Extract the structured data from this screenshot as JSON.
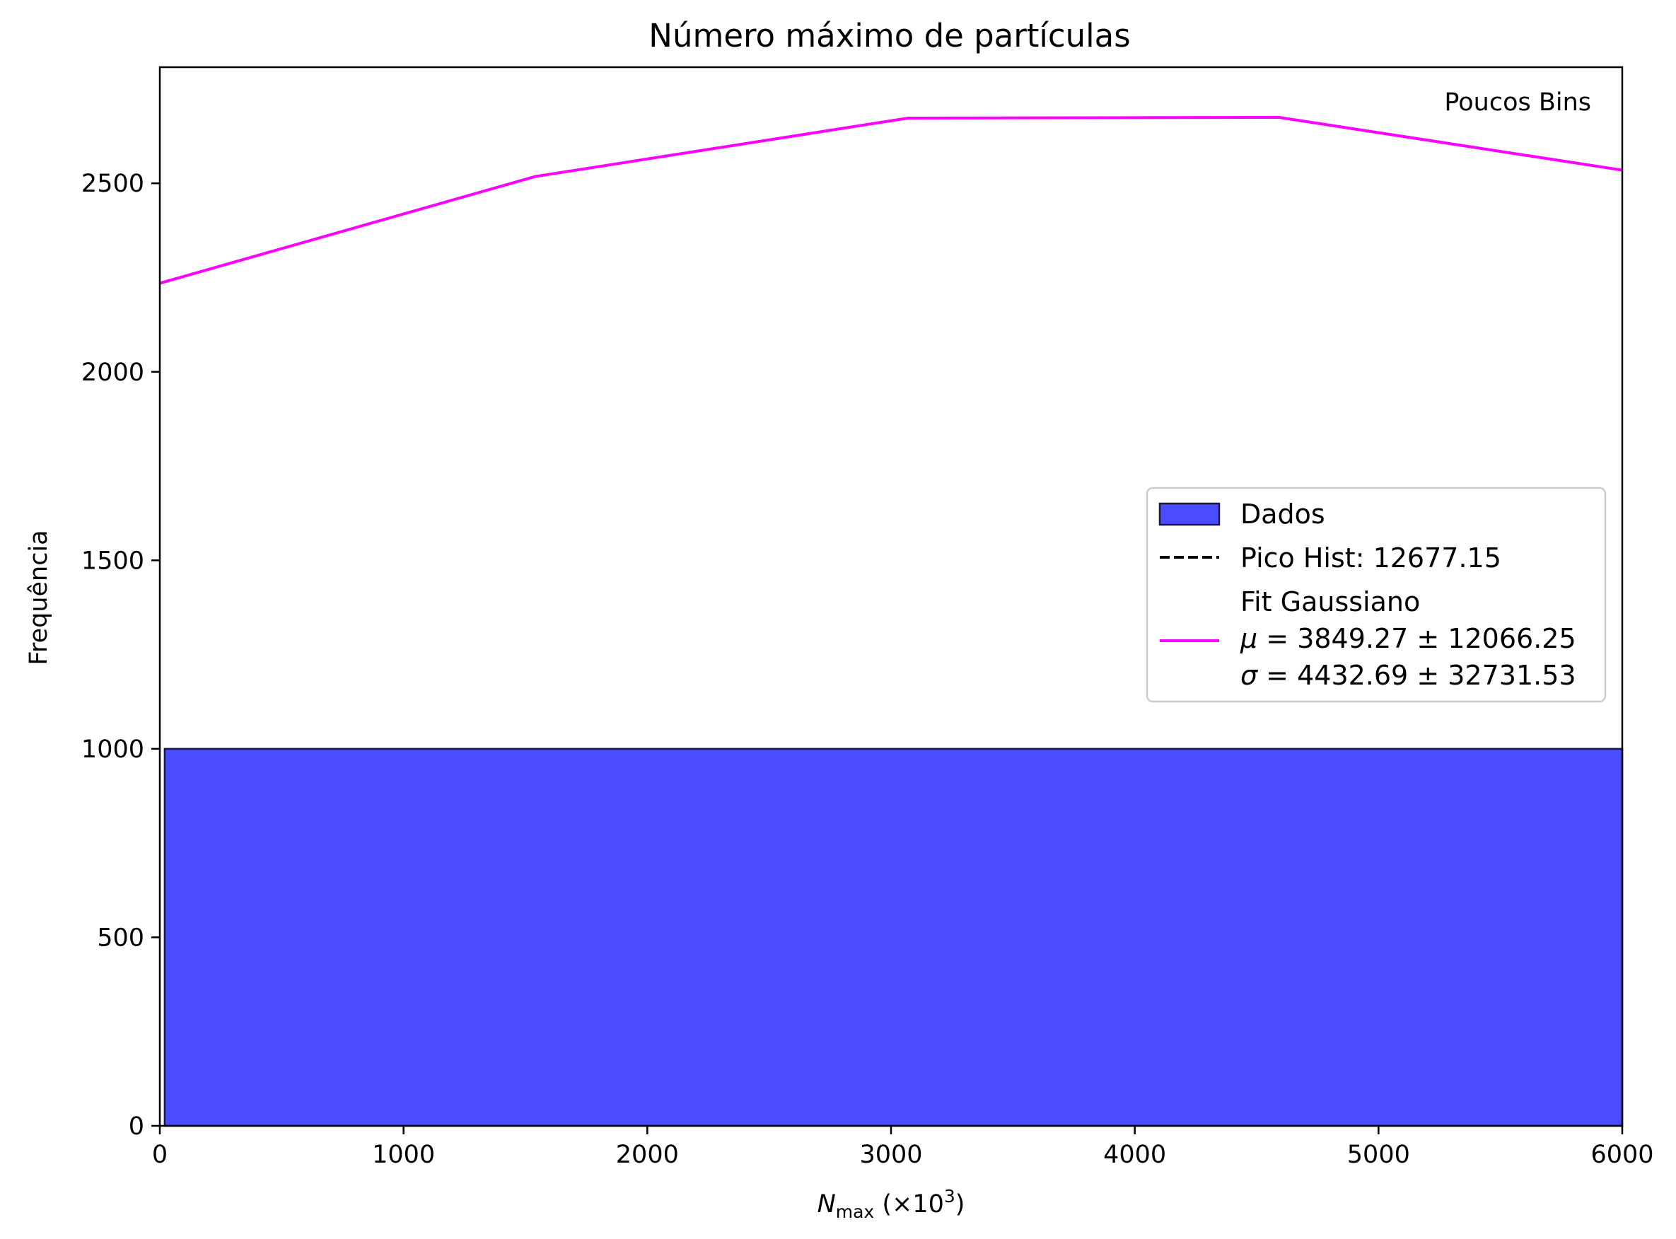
{
  "chart_data": {
    "type": "bar",
    "title": "Número máximo de partículas",
    "xlabel": {
      "main": "N",
      "sub": "max",
      "rest": " (×10",
      "sup": "3",
      "close": ")"
    },
    "ylabel": "Frequência",
    "annotation": "Poucos Bins",
    "xlim": [
      0,
      6000
    ],
    "ylim": [
      0,
      2808
    ],
    "xticks": [
      0,
      1000,
      2000,
      3000,
      4000,
      5000,
      6000
    ],
    "yticks": [
      0,
      500,
      1000,
      1500,
      2000,
      2500
    ],
    "colors": {
      "bars": "#4b4bff",
      "bar_edge": "#1a1a40",
      "fit": "#ff00ff",
      "peak": "#000000"
    },
    "histogram": {
      "name": "Dados",
      "bins": [
        {
          "x0": 20,
          "x1": 6000,
          "count": 1000
        }
      ]
    },
    "fit_curve": {
      "name_line1": "Fit Gaussiano",
      "mu": {
        "symbol": "μ",
        "value": "3849.27",
        "err": "12066.25"
      },
      "sigma": {
        "symbol": "σ",
        "value": "4432.69",
        "err": "32731.53"
      },
      "x": [
        0,
        1540,
        3070,
        4590,
        6000
      ],
      "y": [
        2235,
        2518,
        2673,
        2675,
        2535
      ]
    },
    "peak_line": {
      "label": "Pico Hist: 12677.15",
      "x": 12677.15
    },
    "legend_position": "center-right",
    "grid": false
  }
}
